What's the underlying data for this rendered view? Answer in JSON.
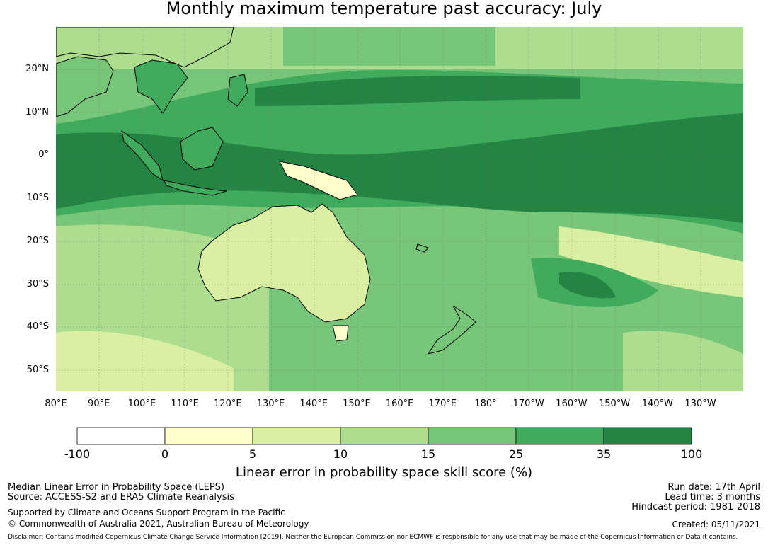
{
  "title": "Monthly maximum temperature past accuracy: July",
  "lat_labels": [
    "20°N",
    "10°N",
    "0°",
    "10°S",
    "20°S",
    "30°S",
    "40°S",
    "50°S"
  ],
  "lon_labels": [
    "80°E",
    "90°E",
    "100°E",
    "110°E",
    "120°E",
    "130°E",
    "140°E",
    "150°E",
    "160°E",
    "170°E",
    "180°",
    "170°W",
    "160°W",
    "150°W",
    "140°W",
    "130°W"
  ],
  "colorbar": {
    "title": "Linear error in probability space skill score (%)",
    "tick_labels": [
      "-100",
      "0",
      "5",
      "10",
      "15",
      "25",
      "35",
      "100"
    ],
    "colors": [
      "#ffffff",
      "#ffffcc",
      "#d9f0a3",
      "#addd8e",
      "#78c679",
      "#41ab5d",
      "#238443"
    ]
  },
  "info_left": {
    "line1": "Median Linear Error in Probability Space (LEPS)",
    "line2": "Source: ACCESS-S2 and ERA5 Climate Reanalysis",
    "line3": "Supported by Climate and Oceans Support Program in the Pacific",
    "line4": "© Commonwealth of Australia 2021, Australian Bureau of Meteorology"
  },
  "info_right": {
    "run_date": "Run date: 17th April",
    "lead_time": "Lead time: 3 months",
    "hindcast": "Hindcast period: 1981-2018",
    "created": "Created: 05/11/2021"
  },
  "disclaimer": "Disclaimer: Contains modified Copernicus Climate Change Service Information [2019]. Neither the European Commission nor ECMWF is responsible for any use that may be made of the Copernicus Information or Data it contains."
}
